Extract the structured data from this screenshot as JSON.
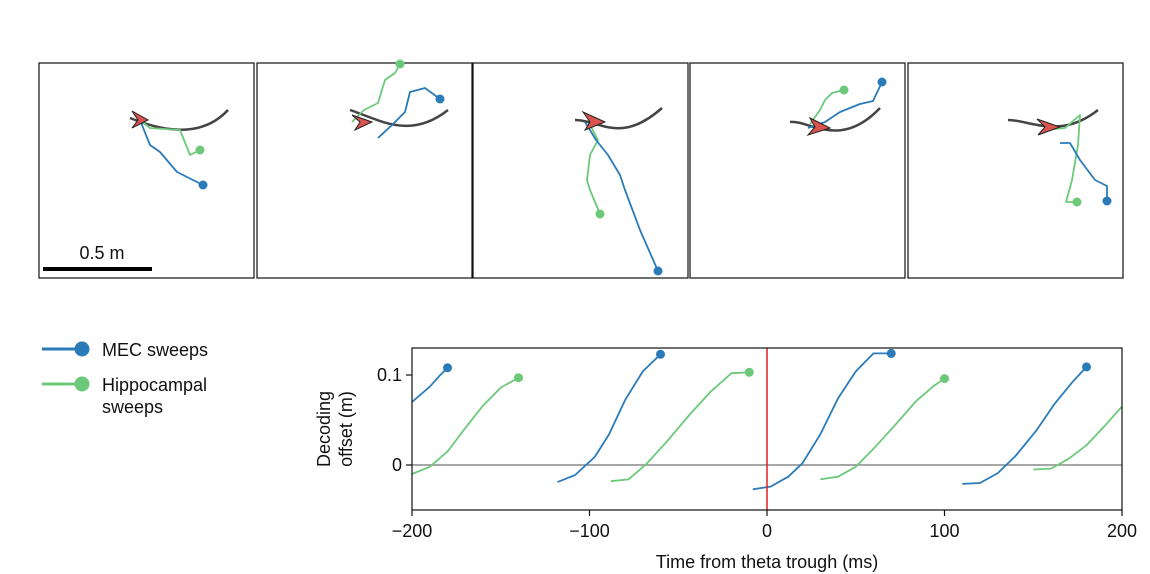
{
  "colors": {
    "mec": "#2b7bb9",
    "hippocampal": "#6cc97a",
    "track": "#444444",
    "arrow": "#d9534f",
    "theta_line": "#e02020",
    "zero_line": "#888888"
  },
  "scale_bar": {
    "label": "0.5 m"
  },
  "legend": {
    "items": [
      {
        "label_lines": [
          "MEC sweeps"
        ],
        "color_key": "mec"
      },
      {
        "label_lines": [
          "Hippocampal",
          "sweeps"
        ],
        "color_key": "hippocampal"
      }
    ]
  },
  "chart_data": {
    "type": "line",
    "title": "",
    "xlabel": "Time from theta trough (ms)",
    "ylabel_lines": [
      "Decoding",
      "offset (m)"
    ],
    "xlim": [
      -200,
      200
    ],
    "ylim": [
      -0.05,
      0.13
    ],
    "xticks": [
      -200,
      -100,
      0,
      100,
      200
    ],
    "xtick_labels": [
      "−200",
      "−100",
      "0",
      "100",
      "200"
    ],
    "yticks": [
      0,
      0.1
    ],
    "ytick_labels": [
      "0",
      "0.1"
    ],
    "vline_x": 0,
    "hline_y": 0,
    "series": [
      {
        "name": "MEC sweeps",
        "color_key": "mec",
        "sweeps": [
          [
            [
              -200,
              0.07
            ],
            [
              -190,
              0.087
            ],
            [
              -185,
              0.098
            ],
            [
              -180,
              0.108
            ]
          ],
          [
            [
              -118,
              -0.019
            ],
            [
              -108,
              -0.011
            ],
            [
              -97,
              0.009
            ],
            [
              -89,
              0.034
            ],
            [
              -80,
              0.072
            ],
            [
              -70,
              0.104
            ],
            [
              -60,
              0.123
            ]
          ],
          [
            [
              -8,
              -0.027
            ],
            [
              2,
              -0.024
            ],
            [
              12,
              -0.013
            ],
            [
              20,
              0.002
            ],
            [
              30,
              0.034
            ],
            [
              40,
              0.074
            ],
            [
              50,
              0.104
            ],
            [
              60,
              0.124
            ],
            [
              70,
              0.124
            ]
          ],
          [
            [
              110,
              -0.021
            ],
            [
              120,
              -0.02
            ],
            [
              130,
              -0.009
            ],
            [
              140,
              0.01
            ],
            [
              152,
              0.039
            ],
            [
              162,
              0.068
            ],
            [
              172,
              0.092
            ],
            [
              180,
              0.109
            ]
          ]
        ]
      },
      {
        "name": "Hippocampal sweeps",
        "color_key": "hippocampal",
        "sweeps": [
          [
            [
              -200,
              -0.01
            ],
            [
              -190,
              -0.002
            ],
            [
              -180,
              0.015
            ],
            [
              -170,
              0.041
            ],
            [
              -160,
              0.066
            ],
            [
              -150,
              0.086
            ],
            [
              -140,
              0.097
            ]
          ],
          [
            [
              -88,
              -0.018
            ],
            [
              -78,
              -0.016
            ],
            [
              -68,
              0.001
            ],
            [
              -56,
              0.027
            ],
            [
              -44,
              0.055
            ],
            [
              -32,
              0.081
            ],
            [
              -20,
              0.102
            ],
            [
              -10,
              0.103
            ]
          ],
          [
            [
              30,
              -0.016
            ],
            [
              40,
              -0.013
            ],
            [
              50,
              -0.002
            ],
            [
              60,
              0.018
            ],
            [
              72,
              0.044
            ],
            [
              84,
              0.071
            ],
            [
              94,
              0.088
            ],
            [
              100,
              0.096
            ]
          ],
          [
            [
              150,
              -0.005
            ],
            [
              160,
              -0.004
            ],
            [
              170,
              0.007
            ],
            [
              180,
              0.022
            ],
            [
              190,
              0.043
            ],
            [
              200,
              0.065
            ]
          ]
        ]
      }
    ]
  }
}
